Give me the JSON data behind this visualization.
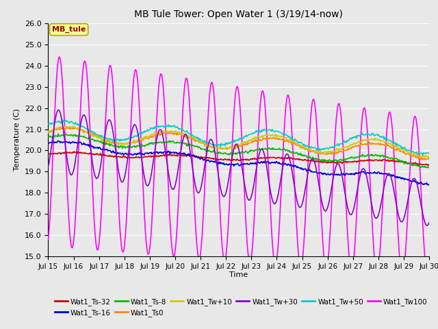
{
  "title": "MB Tule Tower: Open Water 1 (3/19/14-now)",
  "xlabel": "Time",
  "ylabel": "Temperature (C)",
  "xlim_start": 0,
  "xlim_end": 15,
  "ylim": [
    15.0,
    26.0
  ],
  "yticks": [
    15.0,
    16.0,
    17.0,
    18.0,
    19.0,
    20.0,
    21.0,
    22.0,
    23.0,
    24.0,
    25.0,
    26.0
  ],
  "xtick_labels": [
    "Jul 15",
    "Jul 16",
    "Jul 17",
    "Jul 18",
    "Jul 19",
    "Jul 20",
    "Jul 21",
    "Jul 22",
    "Jul 23",
    "Jul 24",
    "Jul 25",
    "Jul 26",
    "Jul 27",
    "Jul 28",
    "Jul 29",
    "Jul 30"
  ],
  "background_color": "#e8e8e8",
  "plot_bg": "#e8e8e8",
  "grid_color": "#ffffff",
  "annotation_text": "MB_tule",
  "annotation_color": "#990000",
  "annotation_bg": "#ffff99",
  "series": {
    "Wat1_Ts-32": {
      "color": "#cc0000",
      "linewidth": 1.2,
      "zorder": 4
    },
    "Wat1_Ts-16": {
      "color": "#0000cc",
      "linewidth": 1.2,
      "zorder": 4
    },
    "Wat1_Ts-8": {
      "color": "#00bb00",
      "linewidth": 1.2,
      "zorder": 4
    },
    "Wat1_Ts0": {
      "color": "#ff8800",
      "linewidth": 1.2,
      "zorder": 4
    },
    "Wat1_Tw+10": {
      "color": "#cccc00",
      "linewidth": 1.2,
      "zorder": 4
    },
    "Wat1_Tw+30": {
      "color": "#8800cc",
      "linewidth": 1.2,
      "zorder": 4
    },
    "Wat1_Tw+50": {
      "color": "#00cccc",
      "linewidth": 1.2,
      "zorder": 4
    },
    "Wat1_Tw100": {
      "color": "#ff00ff",
      "linewidth": 1.2,
      "zorder": 3
    }
  }
}
